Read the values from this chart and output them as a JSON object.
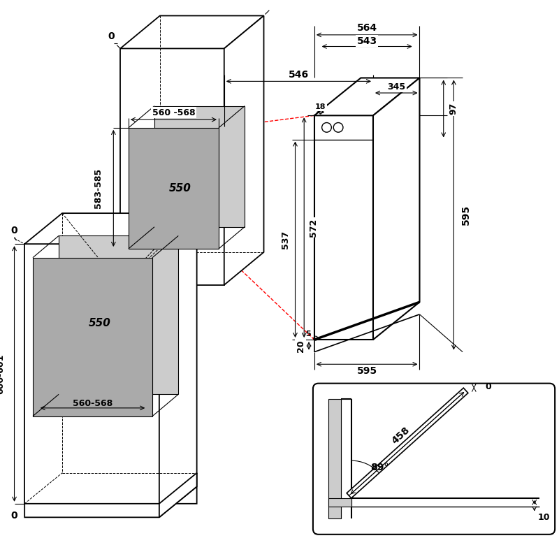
{
  "bg_color": "#ffffff",
  "line_color": "#000000",
  "gray_fill": "#aaaaaa",
  "light_gray": "#cccccc",
  "red_dashed": "#ff0000",
  "lw_main": 1.3,
  "lw_thin": 0.8,
  "lw_dim": 0.8,
  "fs_dim": 9,
  "fs_label": 11
}
